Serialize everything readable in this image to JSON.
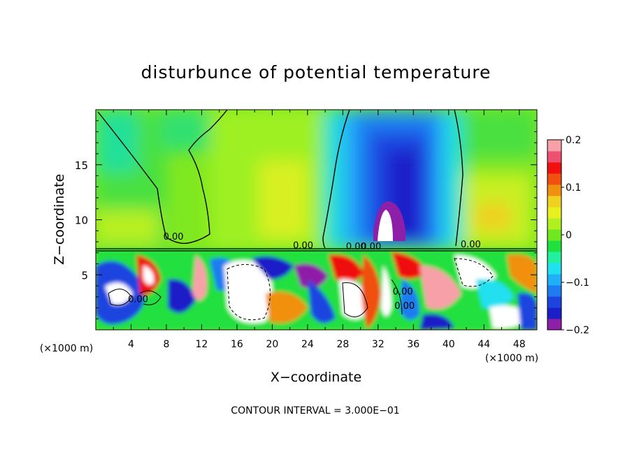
{
  "chart_data": {
    "type": "heatmap",
    "title": "disturbunce of potential temperature",
    "xlabel": "X−coordinate",
    "ylabel": "Z−coordinate",
    "x_unit_left": "(×1000 m)",
    "x_unit_right": "(×1000 m)",
    "xlim": [
      0,
      50
    ],
    "ylim": [
      0,
      20
    ],
    "x_ticks": [
      "4",
      "8",
      "12",
      "16",
      "20",
      "24",
      "28",
      "32",
      "36",
      "40",
      "44",
      "48"
    ],
    "y_ticks": [
      "5",
      "10",
      "15"
    ],
    "contour_interval": "CONTOUR INTERVAL = 3.000E−01",
    "contour_labels": [
      "0.00",
      "0.00",
      "0.00",
      "0.00",
      "0.00",
      "0.00",
      "0.00",
      "0.00"
    ],
    "colorbar": {
      "range": [
        -0.2,
        0.2
      ],
      "tick_labels": [
        "0.2",
        "0.1",
        "0",
        "−0.1",
        "−0.2"
      ],
      "colors": [
        "#8e1fa8",
        "#1b1fc8",
        "#1e44e0",
        "#1e7bf0",
        "#20b0f8",
        "#20e0f0",
        "#20f0a0",
        "#20e040",
        "#70e820",
        "#b0f020",
        "#e8f020",
        "#f0d020",
        "#f09010",
        "#f05010",
        "#f01010",
        "#f05070",
        "#f8a0a8"
      ]
    }
  }
}
